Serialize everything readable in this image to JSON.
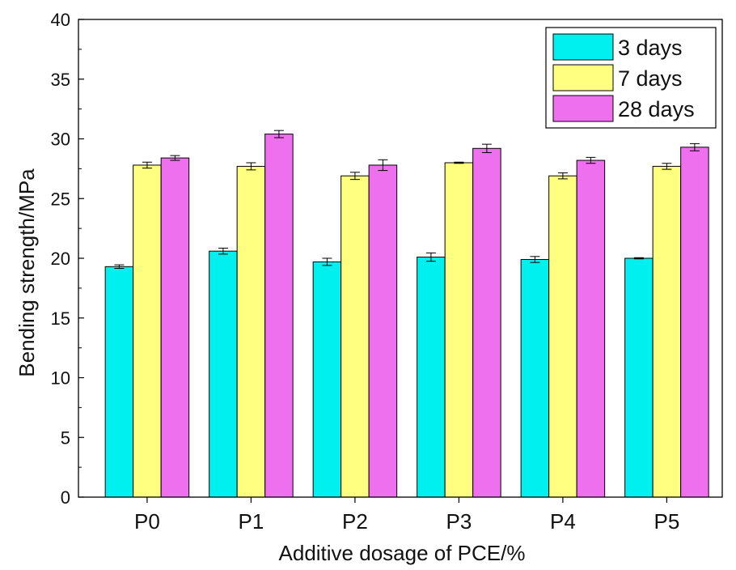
{
  "chart_data": {
    "type": "bar",
    "title": "",
    "xlabel": "Additive dosage of PCE/%",
    "ylabel": "Bending strength/MPa",
    "ylim": [
      0,
      40
    ],
    "yticks": [
      0,
      5,
      10,
      15,
      20,
      25,
      30,
      35,
      40
    ],
    "yticks_text": [
      "0",
      "5",
      "10",
      "15",
      "20",
      "25",
      "30",
      "35",
      "40"
    ],
    "categories": [
      "P0",
      "P1",
      "P2",
      "P3",
      "P4",
      "P5"
    ],
    "legend_position": "top-right",
    "series": [
      {
        "name": "3 days",
        "color": "#00f0f0",
        "values": [
          19.3,
          20.6,
          19.7,
          20.1,
          19.9,
          20.0
        ],
        "errors": [
          0.15,
          0.25,
          0.3,
          0.35,
          0.25,
          0.05
        ]
      },
      {
        "name": "7 days",
        "color": "#ffff80",
        "values": [
          27.8,
          27.7,
          26.9,
          28.0,
          26.9,
          27.7
        ],
        "errors": [
          0.25,
          0.3,
          0.3,
          0.05,
          0.25,
          0.25
        ]
      },
      {
        "name": "28 days",
        "color": "#ee70ee",
        "values": [
          28.4,
          30.4,
          27.8,
          29.2,
          28.2,
          29.3
        ],
        "errors": [
          0.2,
          0.3,
          0.45,
          0.35,
          0.25,
          0.3
        ]
      }
    ]
  }
}
